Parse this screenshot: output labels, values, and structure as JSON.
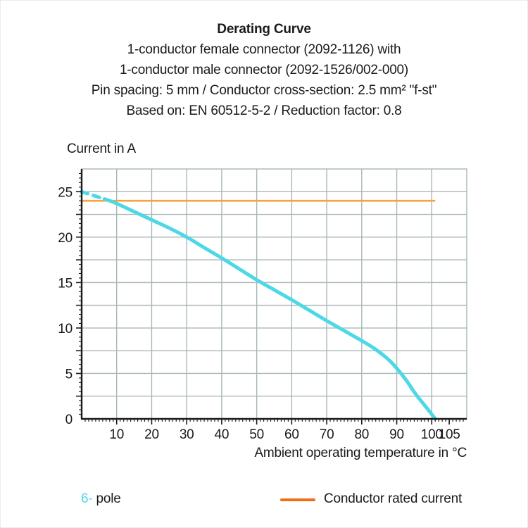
{
  "header": {
    "title": "Derating Curve",
    "lines": [
      "1-conductor female connector (2092-1126) with",
      "1-conductor male connector (2092-1526/002-000)",
      "Pin spacing: 5 mm / Conductor cross-section: 2.5 mm² \"f-st\"",
      "Based on: EN 60512-5-2 / Reduction factor: 0.8"
    ]
  },
  "chart_data": {
    "type": "line",
    "title": "Derating Curve",
    "ylabel": "Current in A",
    "xlabel": "Ambient operating temperature in °C",
    "xlim": [
      0,
      110
    ],
    "ylim": [
      0,
      27.5
    ],
    "x_ticks": [
      10,
      20,
      30,
      40,
      50,
      60,
      70,
      80,
      90,
      100,
      105
    ],
    "y_ticks": [
      0,
      5,
      10,
      15,
      20,
      25
    ],
    "x_grid_step": 10,
    "y_grid_step": 2.5,
    "x_minor_tick_step": 1,
    "y_minor_tick_step": 0.5,
    "grid": "on",
    "legend_position": "bottom",
    "series": [
      {
        "name": "6-pole derating curve",
        "color": "#4DD8E6",
        "dashed_lead_points": [
          [
            0,
            25
          ],
          [
            3.2,
            24.6
          ],
          [
            6.5,
            24.2
          ]
        ],
        "points": [
          [
            6.5,
            24.2
          ],
          [
            10,
            23.7
          ],
          [
            15,
            22.8
          ],
          [
            20,
            21.9
          ],
          [
            25,
            21.0
          ],
          [
            30,
            20.0
          ],
          [
            35,
            18.85
          ],
          [
            40,
            17.7
          ],
          [
            45,
            16.5
          ],
          [
            50,
            15.3
          ],
          [
            55,
            14.2
          ],
          [
            60,
            13.1
          ],
          [
            65,
            11.95
          ],
          [
            70,
            10.8
          ],
          [
            75,
            9.7
          ],
          [
            80,
            8.6
          ],
          [
            83,
            7.9
          ],
          [
            85,
            7.35
          ],
          [
            87,
            6.75
          ],
          [
            89,
            6.0
          ],
          [
            91,
            5.1
          ],
          [
            93,
            4.1
          ],
          [
            95,
            2.95
          ],
          [
            97,
            1.95
          ],
          [
            99,
            1.0
          ],
          [
            100,
            0.5
          ],
          [
            101,
            0
          ]
        ]
      },
      {
        "name": "Conductor rated current",
        "color": "#F9A23B",
        "points": [
          [
            0,
            24
          ],
          [
            101,
            24
          ]
        ]
      }
    ]
  },
  "legend": {
    "pole_prefix": "6-",
    "pole_label": "pole",
    "pole_color": "#4DD8E6",
    "rated_label": "Conductor rated current",
    "rated_swatch_color": "#F26C1C"
  },
  "colors": {
    "curve": "#4DD8E6",
    "rated_line": "#F9A23B",
    "legend_swatch": "#F26C1C",
    "grid": "#A9B7B6",
    "axis": "#1A1A1A",
    "text": "#1A1A1A",
    "background": "#FFFFFF"
  }
}
